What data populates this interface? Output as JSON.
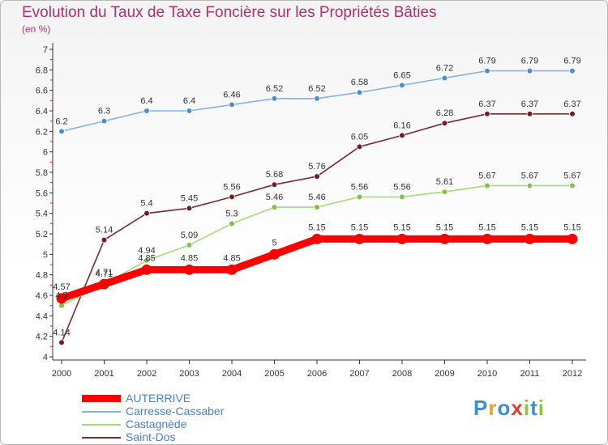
{
  "title": "Evolution du Taux de Taxe Foncière sur les Propriétés Bâties",
  "unit": "(en %)",
  "logo": {
    "text": "Proxiti",
    "letter_colors": [
      "#3a8fd6",
      "#f0a02a",
      "#3a8fd6",
      "#e0402a",
      "#88c540",
      "#3a8fd6",
      "#88c540"
    ]
  },
  "chart_data": {
    "type": "line",
    "title": "Evolution du Taux de Taxe Foncière sur les Propriétés Bâties",
    "ylabel": "(en %)",
    "xlabel": "",
    "x": [
      "2000",
      "2001",
      "2002",
      "2003",
      "2004",
      "2005",
      "2006",
      "2007",
      "2008",
      "2009",
      "2010",
      "2011",
      "2012"
    ],
    "ylim": [
      4,
      7
    ],
    "ytick_step": 0.2,
    "yticks": [
      "4",
      "4.2",
      "4.4",
      "4.6",
      "4.8",
      "5",
      "5.2",
      "5.4",
      "5.6",
      "5.8",
      "6",
      "6.2",
      "6.4",
      "6.6",
      "6.8",
      "7"
    ],
    "grid": false,
    "legend_position": "bottom-left",
    "series": [
      {
        "name": "Carresse-Cassaber",
        "color": "#4d8ec9",
        "line_color": "#86b4e0",
        "values": [
          6.2,
          6.3,
          6.4,
          6.4,
          6.46,
          6.52,
          6.52,
          6.58,
          6.65,
          6.72,
          6.79,
          6.79,
          6.79
        ],
        "labels": [
          "6.2",
          "6.3",
          "6.4",
          "6.4",
          "6.46",
          "6.52",
          "6.52",
          "6.58",
          "6.65",
          "6.72",
          "6.79",
          "6.79",
          "6.79"
        ]
      },
      {
        "name": "Saint-Dos",
        "color": "#6e1e24",
        "line_color": "#7b2a30",
        "values": [
          4.14,
          5.14,
          5.4,
          5.45,
          5.56,
          5.68,
          5.76,
          6.05,
          6.16,
          6.28,
          6.37,
          6.37,
          6.37
        ],
        "labels": [
          "4.14",
          "5.14",
          "5.4",
          "5.45",
          "5.56",
          "5.68",
          "5.76",
          "6.05",
          "6.16",
          "6.28",
          "6.37",
          "6.37",
          "6.37"
        ]
      },
      {
        "name": "Castagnède",
        "color": "#7cc443",
        "line_color": "#a3d97b",
        "values": [
          4.5,
          4.71,
          4.94,
          5.09,
          5.3,
          5.46,
          5.46,
          5.56,
          5.56,
          5.61,
          5.67,
          5.67,
          5.67
        ],
        "labels": [
          "4.5",
          "4.71",
          "4.94",
          "5.09",
          "5.3",
          "5.46",
          "5.46",
          "5.56",
          "5.56",
          "5.61",
          "5.67",
          "5.67",
          "5.67"
        ]
      },
      {
        "name": "AUTERRIVE",
        "color": "#ff0000",
        "line_color": "#ff0000",
        "values": [
          4.57,
          4.71,
          4.85,
          4.85,
          4.85,
          5,
          5.15,
          5.15,
          5.15,
          5.15,
          5.15,
          5.15,
          5.15
        ],
        "labels": [
          "4.57",
          "4.71",
          "4.85",
          "4.85",
          "4.85",
          "5",
          "5.15",
          "5.15",
          "5.15",
          "5.15",
          "5.15",
          "5.15",
          "5.15"
        ]
      }
    ],
    "legend_order": [
      "AUTERRIVE",
      "Carresse-Cassaber",
      "Castagnède",
      "Saint-Dos"
    ]
  }
}
